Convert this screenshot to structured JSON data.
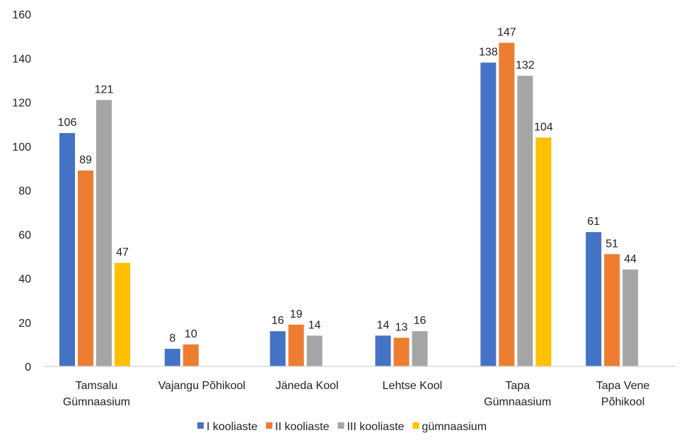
{
  "chart_data": {
    "type": "bar",
    "title": "",
    "xlabel": "",
    "ylabel": "",
    "ylim": [
      0,
      160
    ],
    "yticks": [
      0,
      20,
      40,
      60,
      80,
      100,
      120,
      140,
      160
    ],
    "grid": false,
    "legend_position": "bottom",
    "categories": [
      [
        "Tamsalu",
        "Gümnaasium"
      ],
      [
        "Vajangu Põhikool"
      ],
      [
        "Jäneda Kool"
      ],
      [
        "Lehtse Kool"
      ],
      [
        "Tapa",
        "Gümnaasium"
      ],
      [
        "Tapa Vene",
        "Põhikool"
      ]
    ],
    "series": [
      {
        "name": "I kooliaste",
        "color": "#4472C4",
        "values": [
          106,
          8,
          16,
          14,
          138,
          61
        ]
      },
      {
        "name": "II kooliaste",
        "color": "#ED7D31",
        "values": [
          89,
          10,
          19,
          13,
          147,
          51
        ]
      },
      {
        "name": "III kooliaste",
        "color": "#A5A5A5",
        "values": [
          121,
          null,
          14,
          16,
          132,
          44
        ]
      },
      {
        "name": "gümnaasium",
        "color": "#FFC000",
        "values": [
          47,
          null,
          null,
          null,
          104,
          null
        ]
      }
    ]
  }
}
